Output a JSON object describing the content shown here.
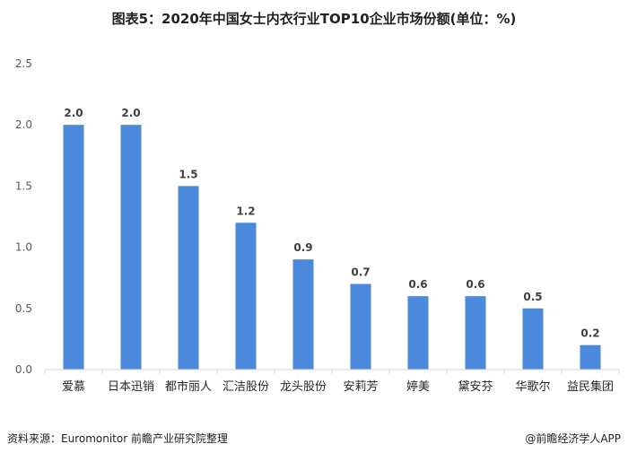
{
  "title": "图表5：2020年中国女士内衣行业TOP10企业市场份额(单位：%)",
  "footer": {
    "source": "资料来源：Euromonitor 前瞻产业研究院整理",
    "brand": "@前瞻经济学人APP"
  },
  "colors": {
    "bar": "#4a89dc",
    "axis": "#d9d9d9",
    "text": "#595959"
  },
  "chart_data": {
    "type": "bar",
    "title": "图表5：2020年中国女士内衣行业TOP10企业市场份额(单位：%)",
    "xlabel": "",
    "ylabel": "",
    "ylim": [
      0,
      2.5
    ],
    "yticks": [
      "0.0",
      "0.5",
      "1.0",
      "1.5",
      "2.0",
      "2.5"
    ],
    "grid": false,
    "categories": [
      "爱慕",
      "日本迅销",
      "都市丽人",
      "汇洁股份",
      "龙头股份",
      "安莉芳",
      "婷美",
      "黛安芬",
      "华歌尔",
      "益民集团"
    ],
    "values": [
      2.0,
      2.0,
      1.5,
      1.2,
      0.9,
      0.7,
      0.6,
      0.6,
      0.5,
      0.2
    ],
    "data_labels": [
      "2.0",
      "2.0",
      "1.5",
      "1.2",
      "0.9",
      "0.7",
      "0.6",
      "0.6",
      "0.5",
      "0.2"
    ]
  }
}
